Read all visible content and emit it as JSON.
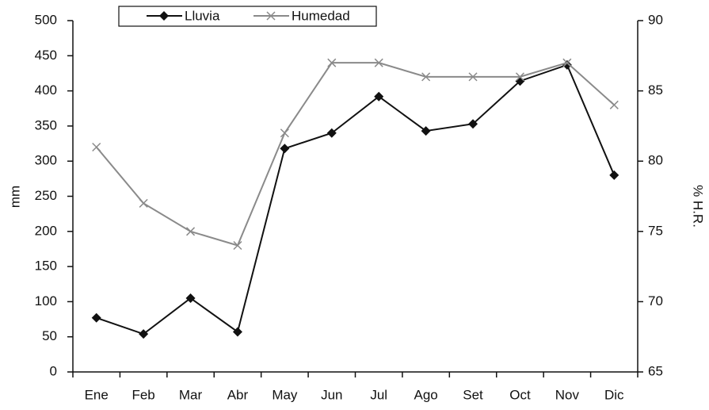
{
  "chart_data": {
    "type": "line",
    "categories": [
      "Ene",
      "Feb",
      "Mar",
      "Abr",
      "May",
      "Jun",
      "Jul",
      "Ago",
      "Set",
      "Oct",
      "Nov",
      "Dic"
    ],
    "series": [
      {
        "name": "Lluvia",
        "color": "#111111",
        "marker": "diamond",
        "values": [
          77,
          54,
          105,
          57,
          318,
          340,
          392,
          343,
          353,
          414,
          437,
          280
        ]
      },
      {
        "name": "Humedad",
        "color": "#8a8a8a",
        "marker": "x",
        "axis": "y2",
        "values": [
          81,
          77,
          75,
          74,
          82,
          87,
          87,
          86,
          86,
          86,
          87,
          84
        ]
      }
    ],
    "ylabel": "mm",
    "y2label": "% H.R.",
    "ylim": [
      0,
      500
    ],
    "yticks": [
      0,
      50,
      100,
      150,
      200,
      250,
      300,
      350,
      400,
      450,
      500
    ],
    "y2lim": [
      65,
      90
    ],
    "y2ticks": [
      65,
      70,
      75,
      80,
      85,
      90
    ],
    "grid": false,
    "legend": "top"
  }
}
